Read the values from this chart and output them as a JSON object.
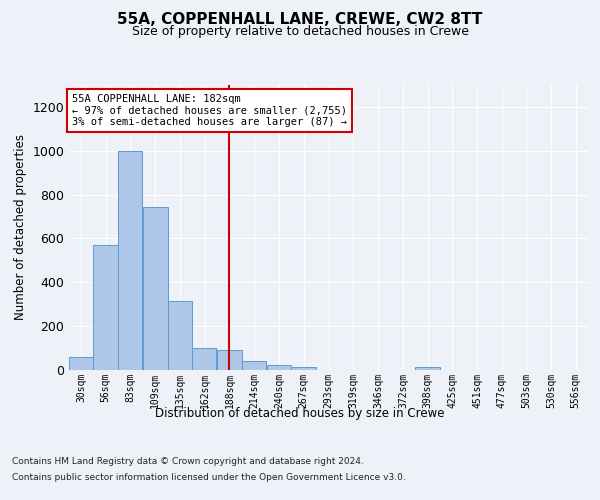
{
  "title1": "55A, COPPENHALL LANE, CREWE, CW2 8TT",
  "title2": "Size of property relative to detached houses in Crewe",
  "xlabel": "Distribution of detached houses by size in Crewe",
  "ylabel": "Number of detached properties",
  "footer1": "Contains HM Land Registry data © Crown copyright and database right 2024.",
  "footer2": "Contains public sector information licensed under the Open Government Licence v3.0.",
  "annotation_line1": "55A COPPENHALL LANE: 182sqm",
  "annotation_line2": "← 97% of detached houses are smaller (2,755)",
  "annotation_line3": "3% of semi-detached houses are larger (87) →",
  "bar_color": "#aec6e8",
  "bar_edge_color": "#5b9bd5",
  "ref_line_color": "#cc0000",
  "ref_line_x": 188,
  "categories": [
    "30sqm",
    "56sqm",
    "83sqm",
    "109sqm",
    "135sqm",
    "162sqm",
    "188sqm",
    "214sqm",
    "240sqm",
    "267sqm",
    "293sqm",
    "319sqm",
    "346sqm",
    "372sqm",
    "398sqm",
    "425sqm",
    "451sqm",
    "477sqm",
    "503sqm",
    "530sqm",
    "556sqm"
  ],
  "bin_edges": [
    17,
    43,
    69,
    96,
    122,
    148,
    175,
    201,
    228,
    254,
    280,
    307,
    333,
    360,
    386,
    412,
    439,
    465,
    491,
    517,
    544,
    570
  ],
  "values": [
    60,
    570,
    1000,
    745,
    315,
    100,
    90,
    40,
    25,
    15,
    0,
    0,
    0,
    0,
    15,
    0,
    0,
    0,
    0,
    0,
    0
  ],
  "ylim": [
    0,
    1300
  ],
  "yticks": [
    0,
    200,
    400,
    600,
    800,
    1000,
    1200
  ],
  "background_color": "#eef2f8",
  "plot_background": "#eef2f8"
}
